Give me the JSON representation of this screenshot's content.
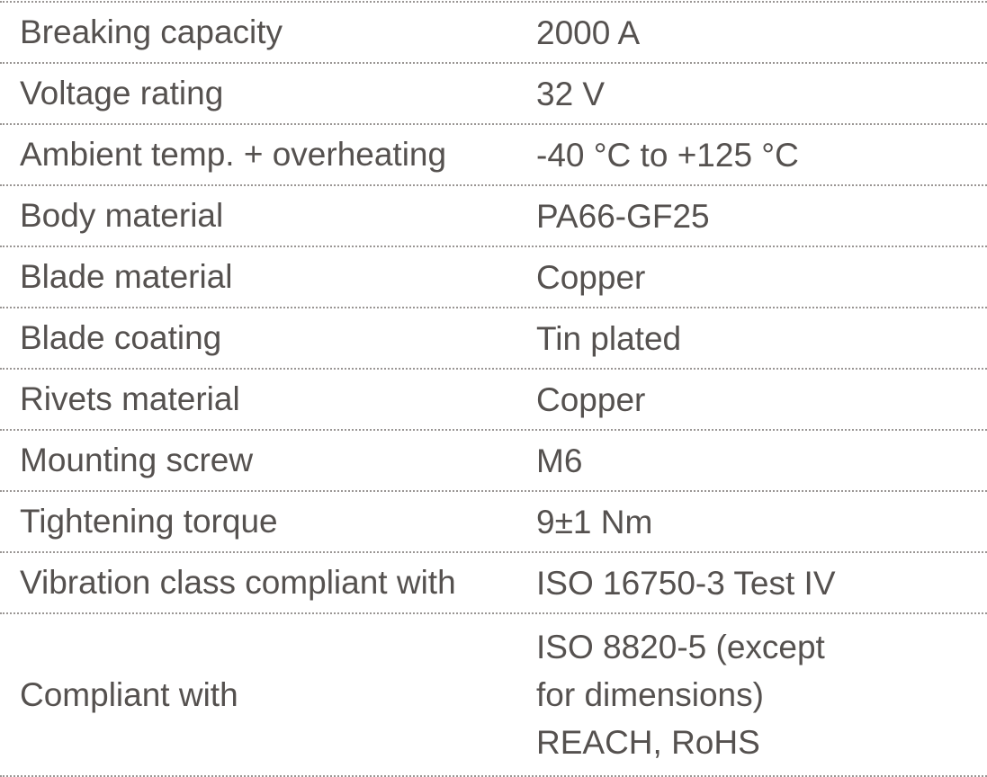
{
  "spec_table": {
    "rows": [
      {
        "label": "Breaking capacity",
        "value": "2000 A"
      },
      {
        "label": "Voltage rating",
        "value": "32 V"
      },
      {
        "label": "Ambient temp. + overheating",
        "value": "-40 °C to +125 °C"
      },
      {
        "label": "Body material",
        "value": "PA66-GF25"
      },
      {
        "label": "Blade material",
        "value": "Copper"
      },
      {
        "label": "Blade coating",
        "value": "Tin plated"
      },
      {
        "label": "Rivets material",
        "value": "Copper"
      },
      {
        "label": "Mounting screw",
        "value": "M6"
      },
      {
        "label": "Tightening torque",
        "value": "9±1 Nm"
      },
      {
        "label": "Vibration class compliant with",
        "value": "ISO 16750-3 Test IV"
      }
    ],
    "last_row": {
      "label": "Compliant with",
      "value_lines": [
        "ISO 8820-5 (except",
        "for dimensions)",
        "REACH, RoHS"
      ]
    }
  },
  "colors": {
    "text": "#55514f",
    "divider": "#9a9694"
  }
}
